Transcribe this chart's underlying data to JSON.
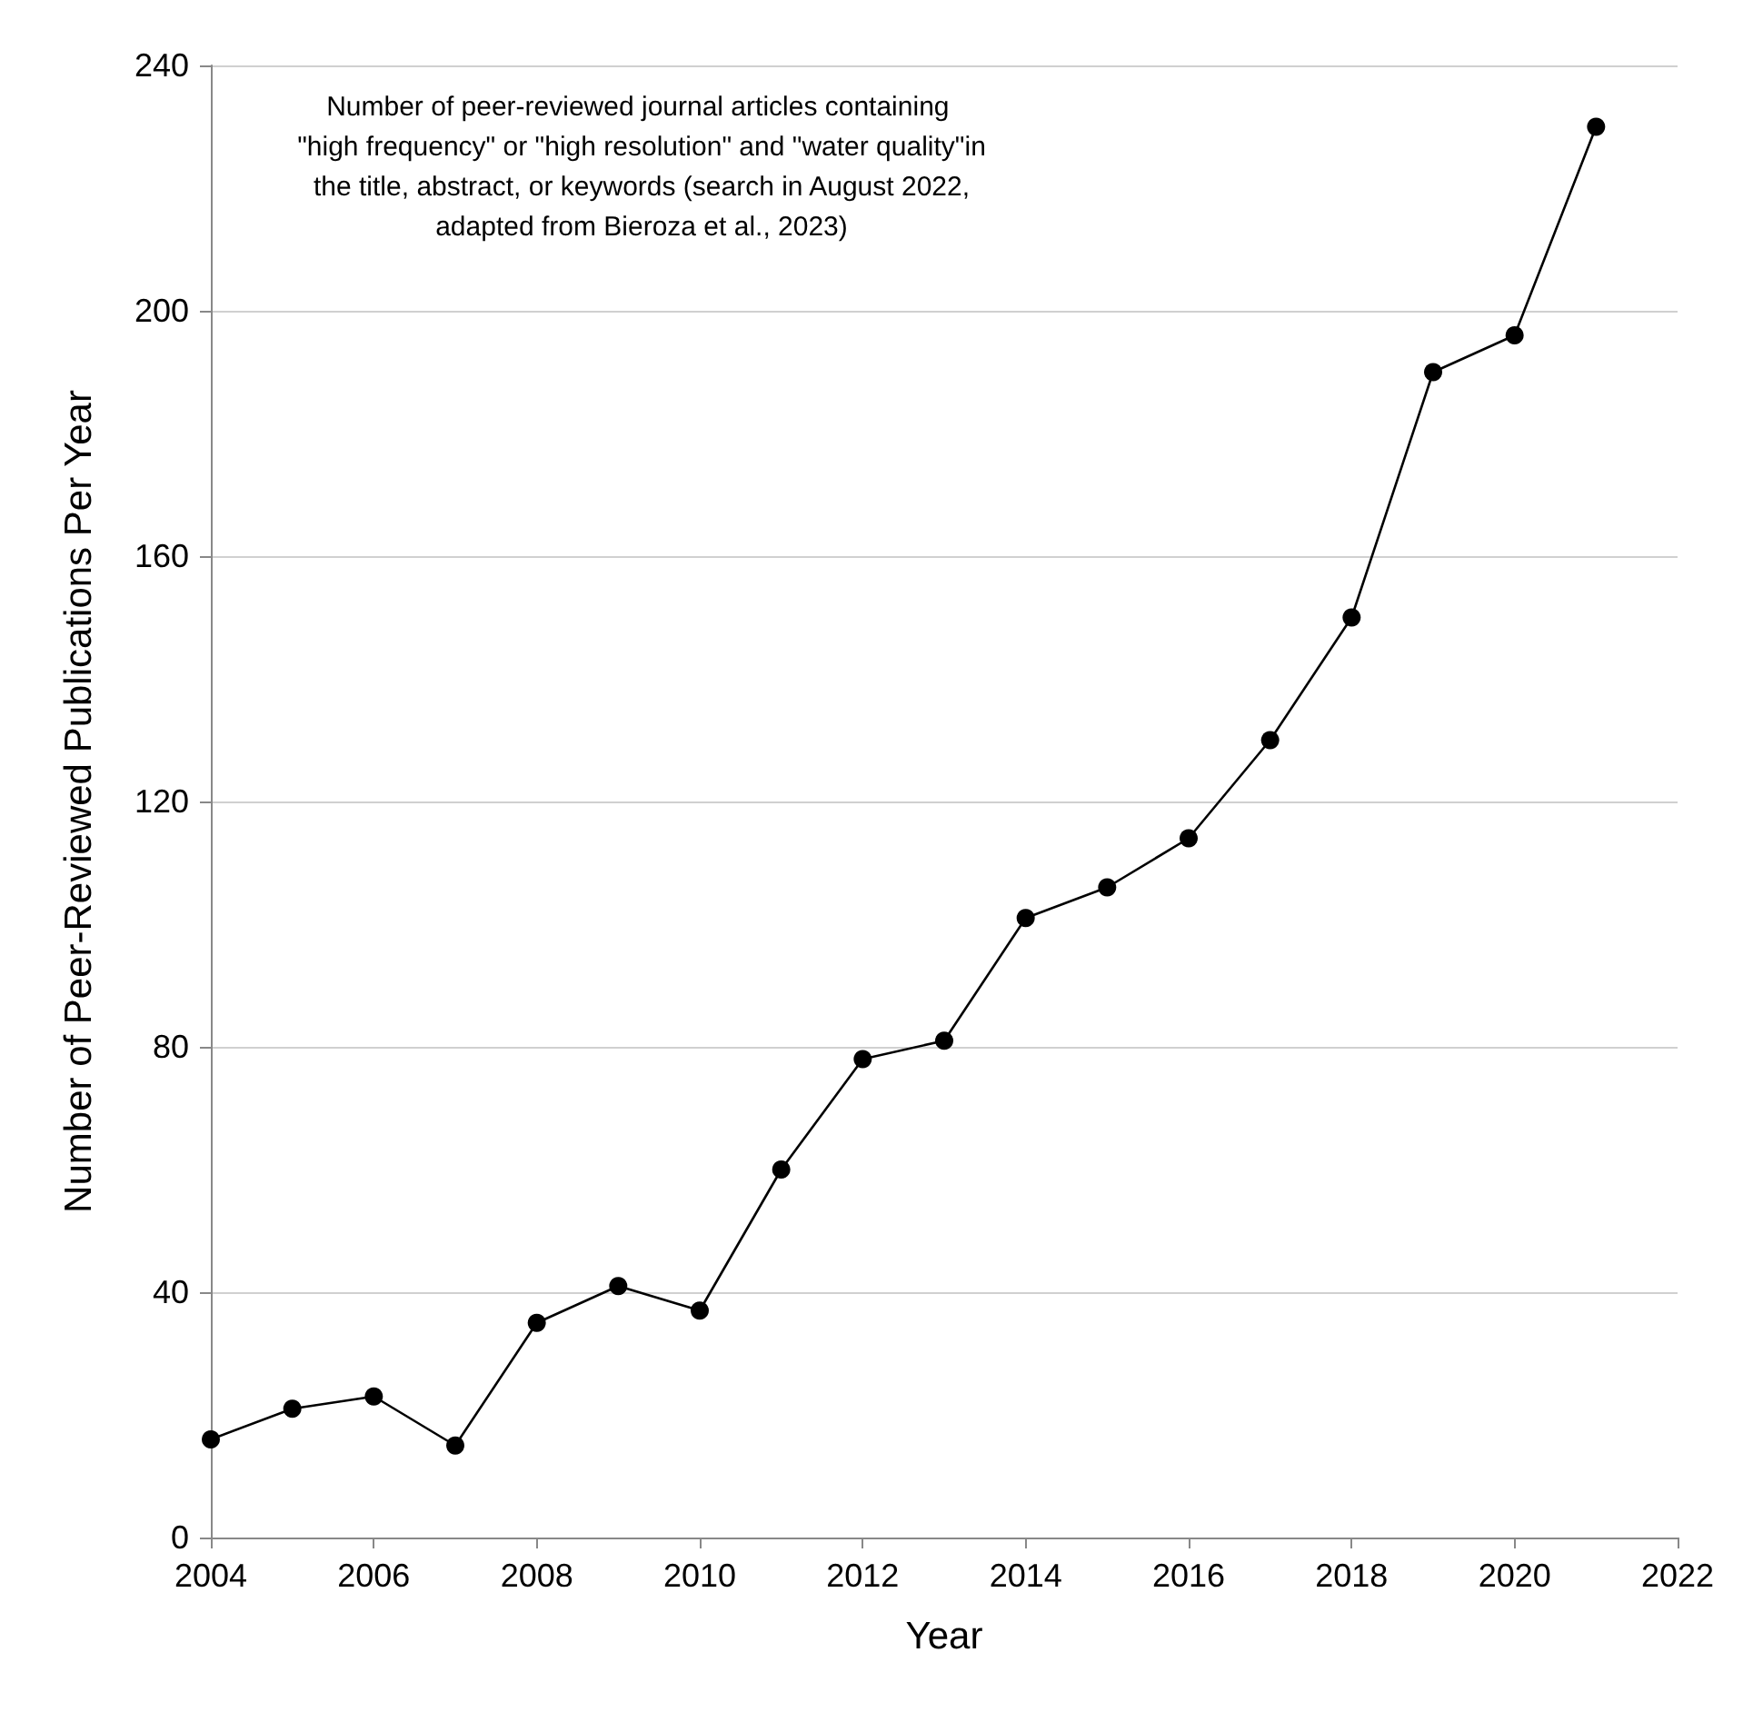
{
  "chart_data": {
    "type": "line",
    "xlabel": "Year",
    "ylabel": "Number of Peer-Reviewed Publications Per Year",
    "annotations": [
      "Number of peer-reviewed journal articles containing \"high frequency\" or \"high resolution\" and \"water quality\"in the title, abstract, or keywords (search in August 2022, adapted from Bieroza et al., 2023)"
    ],
    "x": [
      2004,
      2005,
      2006,
      2007,
      2008,
      2009,
      2010,
      2011,
      2012,
      2013,
      2014,
      2015,
      2016,
      2017,
      2018,
      2019,
      2020,
      2021
    ],
    "series": [
      {
        "color": "#000000",
        "values": [
          16,
          21,
          23,
          15,
          35,
          41,
          37,
          60,
          78,
          81,
          101,
          106,
          114,
          130,
          150,
          190,
          196,
          230
        ]
      }
    ],
    "xlim": [
      2004,
      2022
    ],
    "xticks": [
      2004,
      2006,
      2008,
      2010,
      2012,
      2014,
      2016,
      2018,
      2020,
      2022
    ],
    "ylim": [
      0,
      240
    ],
    "yticks": [
      0,
      40,
      80,
      120,
      160,
      200,
      240
    ],
    "grid": "y",
    "marker": "circle",
    "line_style": "solid"
  }
}
